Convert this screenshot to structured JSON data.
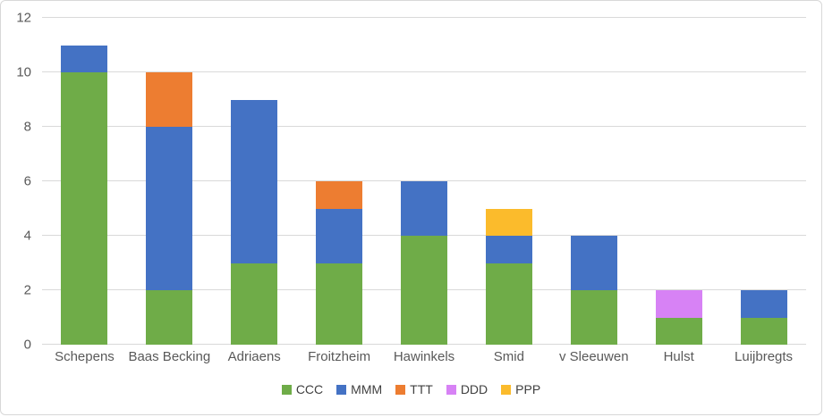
{
  "chart_data": {
    "type": "bar",
    "stacked": true,
    "orientation": "vertical",
    "title": "",
    "xlabel": "",
    "ylabel": "",
    "categories": [
      "Schepens",
      "Baas Becking",
      "Adriaens",
      "Froitzheim",
      "Hawinkels",
      "Smid",
      "v Sleeuwen",
      "Hulst",
      "Luijbregts"
    ],
    "series": [
      {
        "name": "CCC",
        "color": "#6FAC48",
        "values": [
          10,
          2,
          3,
          3,
          4,
          3,
          2,
          1,
          1
        ]
      },
      {
        "name": "MMM",
        "color": "#4472C4",
        "values": [
          1,
          6,
          6,
          2,
          2,
          1,
          2,
          0,
          1
        ]
      },
      {
        "name": "TTT",
        "color": "#ED7D31",
        "values": [
          0,
          2,
          0,
          1,
          0,
          0,
          0,
          0,
          0
        ]
      },
      {
        "name": "DDD",
        "color": "#D782F5",
        "values": [
          0,
          0,
          0,
          0,
          0,
          0,
          0,
          1,
          0
        ]
      },
      {
        "name": "PPP",
        "color": "#FBBB2C",
        "values": [
          0,
          0,
          0,
          0,
          0,
          1,
          0,
          0,
          0
        ]
      }
    ],
    "totals": [
      11,
      10,
      9,
      6,
      6,
      5,
      4,
      2,
      2
    ],
    "ylim": [
      0,
      12
    ],
    "yticks": [
      0,
      2,
      4,
      6,
      8,
      10,
      12
    ],
    "grid": true,
    "legend_position": "bottom",
    "legend_labels": [
      "CCC",
      "MMM",
      "TTT",
      "DDD",
      "PPP"
    ]
  },
  "style": {
    "gridline_color": "#D9D9D9",
    "tick_label_color": "#595959",
    "legend_text_color": "#404040",
    "frame_border_color": "#D8D8D8",
    "background_color": "#FFFFFF"
  }
}
